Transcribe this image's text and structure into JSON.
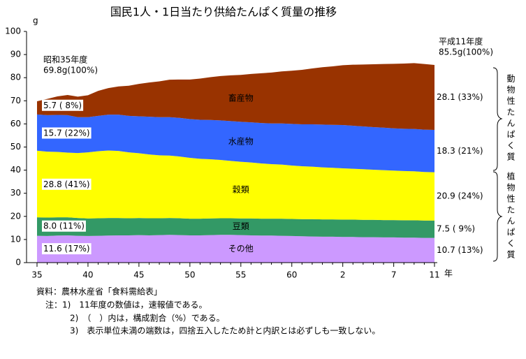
{
  "chart_data": {
    "type": "stacked_area",
    "title": "国民1人・1日当たり供給たんぱく質量の推移",
    "y_unit": "g",
    "x_unit": "年",
    "start_note": [
      "昭和35年度",
      "69.8g(100%)"
    ],
    "end_note": [
      "平成11年度",
      "85.5g(100%)"
    ],
    "group_labels": [
      "動物性たんぱく質",
      "植物性たんぱく質"
    ],
    "source": "資料：農林水産省「食料需給表」",
    "notes": [
      "注：1)　11年度の数値は，速報値である。",
      "2)　（　）内は，構成割合（%）である。",
      "3)　表示単位未満の端数は，四捨五入したため計と内訳とは必ずしも一致しない。"
    ],
    "categories": [
      "35",
      null,
      null,
      null,
      null,
      "40",
      null,
      null,
      null,
      null,
      "45",
      null,
      null,
      null,
      null,
      "50",
      null,
      null,
      null,
      null,
      "55",
      null,
      null,
      null,
      null,
      "60",
      null,
      null,
      null,
      null,
      "2",
      null,
      null,
      null,
      null,
      "7",
      null,
      null,
      null,
      "11"
    ],
    "ylim": [
      0,
      100
    ],
    "yticks": [
      0,
      10,
      20,
      30,
      40,
      50,
      60,
      70,
      80,
      90,
      100
    ],
    "series": [
      {
        "name": "その他",
        "color": "#cc99ff",
        "start_label": "11.6 (17%)",
        "end_label": "10.7 (13%)",
        "values": [
          11.6,
          11.5,
          11.7,
          11.8,
          11.6,
          11.5,
          11.6,
          11.7,
          11.8,
          11.8,
          11.9,
          11.8,
          11.9,
          12.0,
          11.9,
          11.8,
          11.8,
          11.9,
          12.0,
          12.0,
          11.9,
          11.8,
          11.7,
          11.7,
          11.6,
          11.5,
          11.4,
          11.3,
          11.2,
          11.2,
          11.1,
          11.1,
          11.0,
          11.0,
          10.9,
          10.9,
          10.8,
          10.8,
          10.7,
          10.7
        ]
      },
      {
        "name": "豆類",
        "color": "#339966",
        "start_label": "8.0 (11%)",
        "end_label": "7.5 ( 9%)",
        "values": [
          8.0,
          8.0,
          7.9,
          7.8,
          7.7,
          7.6,
          7.6,
          7.6,
          7.5,
          7.4,
          7.4,
          7.4,
          7.3,
          7.3,
          7.3,
          7.2,
          7.2,
          7.2,
          7.2,
          7.2,
          7.2,
          7.3,
          7.3,
          7.3,
          7.4,
          7.4,
          7.4,
          7.5,
          7.5,
          7.5,
          7.5,
          7.5,
          7.5,
          7.5,
          7.5,
          7.5,
          7.5,
          7.5,
          7.5,
          7.5
        ]
      },
      {
        "name": "穀類",
        "color": "#ffff00",
        "start_label": "28.8 (41%)",
        "end_label": "20.9 (24%)",
        "values": [
          28.8,
          28.5,
          28.3,
          28.0,
          28.1,
          28.6,
          29.0,
          29.2,
          29.0,
          28.5,
          28.0,
          27.6,
          27.2,
          27.0,
          26.7,
          26.3,
          25.9,
          25.6,
          25.2,
          24.8,
          24.5,
          24.2,
          23.9,
          23.6,
          23.4,
          23.1,
          22.9,
          22.7,
          22.5,
          22.3,
          22.2,
          22.0,
          21.9,
          21.7,
          21.6,
          21.4,
          21.3,
          21.2,
          21.0,
          20.9
        ]
      },
      {
        "name": "水産物",
        "color": "#3366ff",
        "start_label": "15.7 (22%)",
        "end_label": "18.3 (21%)",
        "values": [
          15.7,
          15.8,
          16.0,
          16.2,
          15.5,
          15.2,
          15.3,
          15.5,
          15.7,
          15.8,
          16.0,
          16.3,
          16.5,
          16.6,
          16.7,
          16.8,
          16.9,
          17.0,
          17.1,
          17.2,
          17.3,
          17.4,
          17.5,
          17.6,
          17.8,
          18.0,
          18.1,
          18.3,
          18.5,
          18.6,
          18.7,
          18.6,
          18.5,
          18.4,
          18.4,
          18.3,
          18.3,
          18.3,
          18.3,
          18.3
        ]
      },
      {
        "name": "畜産物",
        "color": "#993300",
        "start_label": "5.7 ( 8%)",
        "end_label": "28.1 (33%)",
        "values": [
          5.7,
          7.0,
          8.0,
          8.7,
          8.9,
          9.5,
          10.8,
          11.5,
          12.2,
          13.0,
          14.0,
          14.8,
          15.5,
          16.2,
          16.6,
          17.1,
          17.8,
          18.5,
          19.2,
          19.8,
          20.3,
          20.9,
          21.5,
          22.0,
          22.5,
          23.0,
          23.6,
          24.2,
          24.8,
          25.3,
          25.9,
          26.4,
          26.8,
          27.2,
          27.5,
          27.9,
          28.2,
          28.5,
          28.4,
          28.1
        ]
      }
    ]
  }
}
